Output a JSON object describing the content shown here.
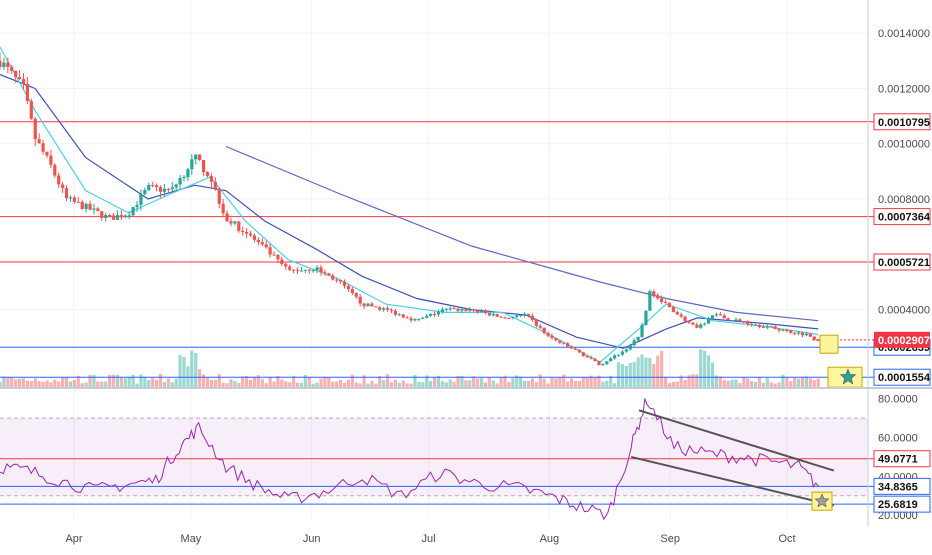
{
  "chart_data": [
    {
      "type": "candlestick",
      "title": "",
      "x_labels": [
        "Apr",
        "May",
        "Jun",
        "Jul",
        "Aug",
        "Sep",
        "Oct"
      ],
      "y_ticks": [
        "0.0014000",
        "0.0012000",
        "0.0010000",
        "0.0008000",
        "0.0004000"
      ],
      "ylim": [
        0.00012,
        0.00152
      ],
      "grid": true,
      "price_path": [
        [
          "Mar 13",
          0.0013
        ],
        [
          "Mar 16",
          0.00125
        ],
        [
          "Mar 19",
          0.0012
        ],
        [
          "Mar 22",
          0.00102
        ],
        [
          "Mar 26",
          0.00092
        ],
        [
          "Mar 30",
          0.0008
        ],
        [
          "Apr 4",
          0.00077
        ],
        [
          "Apr 10",
          0.00073
        ],
        [
          "Apr 15",
          0.00075
        ],
        [
          "Apr 20",
          0.00084
        ],
        [
          "Apr 26",
          0.00083
        ],
        [
          "May 2",
          0.00095
        ],
        [
          "May 6",
          0.00088
        ],
        [
          "May 10",
          0.00073
        ],
        [
          "May 15",
          0.00068
        ],
        [
          "May 20",
          0.00062
        ],
        [
          "May 26",
          0.00054
        ],
        [
          "Jun 2",
          0.00055
        ],
        [
          "Jun 8",
          0.0005
        ],
        [
          "Jun 14",
          0.00042
        ],
        [
          "Jun 20",
          0.0004
        ],
        [
          "Jun 28",
          0.00036
        ],
        [
          "Jul 5",
          0.0004
        ],
        [
          "Jul 12",
          0.0004
        ],
        [
          "Jul 20",
          0.00037
        ],
        [
          "Jul 26",
          0.00038
        ],
        [
          "Aug 1",
          0.0003
        ],
        [
          "Aug 8",
          0.00025
        ],
        [
          "Aug 14",
          0.0002
        ],
        [
          "Aug 20",
          0.00025
        ],
        [
          "Aug 24",
          0.0003
        ],
        [
          "Aug 27",
          0.00047
        ],
        [
          "Aug 31",
          0.00042
        ],
        [
          "Sep 4",
          0.00037
        ],
        [
          "Sep 8",
          0.00033
        ],
        [
          "Sep 12",
          0.00038
        ],
        [
          "Sep 18",
          0.00036
        ],
        [
          "Sep 25",
          0.00034
        ],
        [
          "Oct 2",
          0.00032
        ],
        [
          "Oct 6",
          0.00031
        ],
        [
          "Oct 9",
          0.00029
        ]
      ],
      "ma_fast": [
        [
          "Mar 13",
          0.00135
        ],
        [
          "Mar 22",
          0.00112
        ],
        [
          "Apr 4",
          0.00083
        ],
        [
          "Apr 15",
          0.00075
        ],
        [
          "Apr 26",
          0.00082
        ],
        [
          "May 6",
          0.00088
        ],
        [
          "May 15",
          0.00072
        ],
        [
          "May 26",
          0.00058
        ],
        [
          "Jun 8",
          0.00051
        ],
        [
          "Jun 20",
          0.00042
        ],
        [
          "Jul 5",
          0.00039
        ],
        [
          "Jul 20",
          0.00039
        ],
        [
          "Aug 1",
          0.00031
        ],
        [
          "Aug 14",
          0.00021
        ],
        [
          "Aug 24",
          0.00033
        ],
        [
          "Aug 31",
          0.00042
        ],
        [
          "Sep 12",
          0.00036
        ],
        [
          "Sep 25",
          0.00034
        ],
        [
          "Oct 9",
          0.00031
        ]
      ],
      "ma_mid": [
        [
          "Mar 13",
          0.00125
        ],
        [
          "Mar 22",
          0.0012
        ],
        [
          "Apr 4",
          0.00095
        ],
        [
          "Apr 20",
          0.0008
        ],
        [
          "May 2",
          0.00085
        ],
        [
          "May 10",
          0.00083
        ],
        [
          "May 20",
          0.00072
        ],
        [
          "Jun 2",
          0.00062
        ],
        [
          "Jun 14",
          0.00052
        ],
        [
          "Jun 28",
          0.00044
        ],
        [
          "Jul 12",
          0.0004
        ],
        [
          "Jul 26",
          0.00038
        ],
        [
          "Aug 8",
          0.0003
        ],
        [
          "Aug 20",
          0.00026
        ],
        [
          "Aug 31",
          0.00033
        ],
        [
          "Sep 8",
          0.00037
        ],
        [
          "Sep 25",
          0.00035
        ],
        [
          "Oct 9",
          0.00033
        ]
      ],
      "ma_slow": [
        [
          "May 10",
          0.00099
        ],
        [
          "Jun 8",
          0.00082
        ],
        [
          "Jul 12",
          0.00063
        ],
        [
          "Aug 14",
          0.0005
        ],
        [
          "Aug 31",
          0.00044
        ],
        [
          "Sep 18",
          0.00039
        ],
        [
          "Oct 9",
          0.00036
        ]
      ],
      "horizontal_levels": [
        {
          "label": "0.0010795",
          "value": 0.0010795,
          "color": "#f23645"
        },
        {
          "label": "0.0007364",
          "value": 0.0007364,
          "color": "#f23645"
        },
        {
          "label": "0.0005721",
          "value": 0.0005721,
          "color": "#f23645"
        },
        {
          "label": "0.0002639",
          "value": 0.0002639,
          "color": "#2962ff"
        },
        {
          "label": "0.0001554",
          "value": 0.0001554,
          "color": "#2962ff"
        }
      ],
      "last_price": {
        "label": "0.0002907",
        "value": 0.0002907,
        "color": "#f23645"
      },
      "colors": {
        "up": "#26a69a",
        "down": "#ef5350",
        "ma_fast": "#4dd0e1",
        "ma_mid": "#3f51b5",
        "ma_slow": "#5c6bc0"
      }
    },
    {
      "type": "line",
      "title": "",
      "y_ticks": [
        "80.0000",
        "60.0000",
        "40.0000",
        "20.0000"
      ],
      "ylim": [
        17,
        85
      ],
      "overbought_band": [
        30,
        70
      ],
      "x": [
        "Mar 13",
        "Mar 20",
        "Mar 28",
        "Apr 6",
        "Apr 15",
        "Apr 22",
        "Apr 28",
        "May 3",
        "May 10",
        "May 18",
        "May 26",
        "Jun 4",
        "Jun 14",
        "Jun 24",
        "Jul 4",
        "Jul 14",
        "Jul 24",
        "Aug 1",
        "Aug 8",
        "Aug 16",
        "Aug 22",
        "Aug 26",
        "Sep 2",
        "Sep 10",
        "Sep 18",
        "Sep 26",
        "Oct 4",
        "Oct 9"
      ],
      "values": [
        45,
        43,
        38,
        33,
        36,
        38,
        55,
        65,
        45,
        35,
        28,
        32,
        40,
        30,
        42,
        36,
        34,
        30,
        25,
        20,
        55,
        80,
        55,
        52,
        50,
        48,
        45,
        35
      ],
      "horizontal_levels": [
        {
          "label": "49.0771",
          "value": 49.0771,
          "color": "#f23645"
        },
        {
          "label": "34.8365",
          "value": 34.8365,
          "color": "#2962ff"
        },
        {
          "label": "25.6819",
          "value": 25.6819,
          "color": "#2962ff"
        }
      ],
      "trendlines": [
        {
          "from": [
            "Aug 24",
            74
          ],
          "to": [
            "Oct 13",
            43
          ]
        },
        {
          "from": [
            "Aug 22",
            50
          ],
          "to": [
            "Oct 13",
            25
          ]
        }
      ],
      "colors": {
        "line": "#9c27b0",
        "band": "#9c27b0"
      }
    }
  ]
}
